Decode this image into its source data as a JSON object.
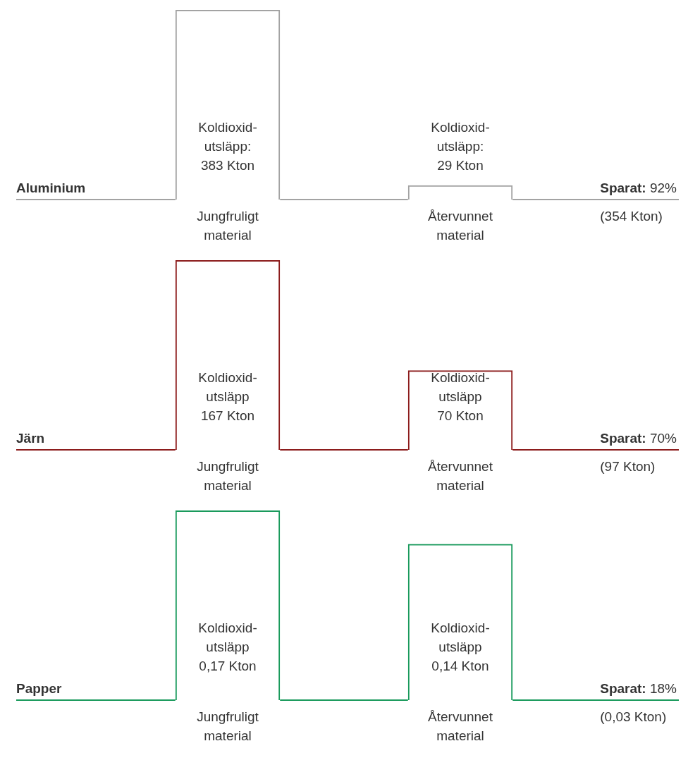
{
  "chart_data": [
    {
      "type": "bar",
      "title": "Aluminium",
      "categories": [
        "Jungfruligt material",
        "Återvunnet material"
      ],
      "values": [
        383,
        29
      ],
      "color": "#a3a3a3",
      "value_labels": [
        "Koldioxid-\nutsläpp:\n383 Kton",
        "Koldioxid-\nutsläpp:\n29 Kton"
      ],
      "annotations": [
        "Sparat: 92%",
        "(354 Kton)"
      ]
    },
    {
      "type": "bar",
      "title": "Järn",
      "categories": [
        "Jungfruligt material",
        "Återvunnet material"
      ],
      "values": [
        167,
        70
      ],
      "color": "#8c1c1c",
      "value_labels": [
        "Koldioxid-\nutsläpp\n167 Kton",
        "Koldioxid-\nutsläpp\n70 Kton"
      ],
      "annotations": [
        "Sparat: 70%",
        "(97 Kton)"
      ]
    },
    {
      "type": "bar",
      "title": "Papper",
      "categories": [
        "Jungfruligt material",
        "Återvunnet material"
      ],
      "values": [
        0.17,
        0.14
      ],
      "color": "#1a9a5c",
      "value_labels": [
        "Koldioxid-\nutsläpp\n0,17 Kton",
        "Koldioxid-\nutsläpp\n0,14 Kton"
      ],
      "annotations": [
        "Sparat: 18%",
        "(0,03 Kton)"
      ]
    }
  ]
}
